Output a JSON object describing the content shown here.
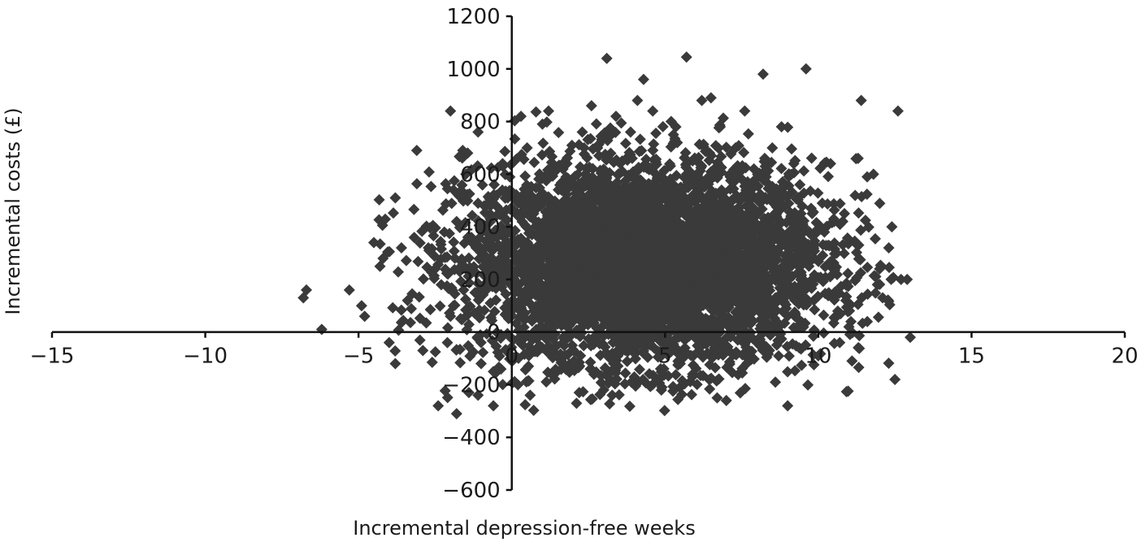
{
  "chart_data": {
    "type": "scatter",
    "title": "",
    "xlabel": "Incremental depression-free weeks",
    "ylabel": "Incremental costs (£)",
    "xlim": [
      -15,
      20
    ],
    "ylim": [
      -600,
      1200
    ],
    "xticks": [
      -15,
      -10,
      -5,
      0,
      5,
      10,
      15,
      20
    ],
    "yticks": [
      -600,
      -400,
      -200,
      0,
      200,
      400,
      600,
      800,
      1000,
      1200
    ],
    "xtick_labels": [
      "−15",
      "−10",
      "−5",
      "0",
      "5",
      "10",
      "15",
      "20"
    ],
    "ytick_labels": [
      "−600",
      "−400",
      "−200",
      "0",
      "200",
      "400",
      "600",
      "800",
      "1000",
      "1200"
    ],
    "grid": false,
    "legend": "none",
    "marker": "diamond",
    "marker_color": "#3a3a3a",
    "n_points_approx": 5000,
    "center": {
      "x": 4.4,
      "y": 260
    },
    "spread_sd": {
      "x": 2.9,
      "y": 190
    },
    "series": [
      {
        "values": [
          [
            -6.8,
            130
          ],
          [
            -6.7,
            160
          ],
          [
            -6.2,
            10
          ],
          [
            -5.3,
            160
          ],
          [
            -4.9,
            100
          ],
          [
            -4.8,
            60
          ],
          [
            -4.5,
            340
          ],
          [
            -4.3,
            250
          ],
          [
            -4.2,
            280
          ],
          [
            -4.0,
            -40
          ],
          [
            -3.8,
            -120
          ],
          [
            -3.8,
            510
          ],
          [
            -3.6,
            320
          ],
          [
            -3.4,
            120
          ],
          [
            -3.1,
            690
          ],
          [
            -2.9,
            -70
          ],
          [
            -2.7,
            310
          ],
          [
            -2.5,
            240
          ],
          [
            -2.4,
            -280
          ],
          [
            -2.3,
            180
          ],
          [
            -2.2,
            380
          ],
          [
            -2.0,
            60
          ],
          [
            -1.8,
            420
          ],
          [
            -1.7,
            230
          ],
          [
            -1.5,
            600
          ],
          [
            -1.3,
            350
          ],
          [
            -1.2,
            150
          ],
          [
            -1.0,
            -120
          ],
          [
            -0.9,
            480
          ],
          [
            -0.8,
            280
          ],
          [
            -0.6,
            -150
          ],
          [
            -0.5,
            520
          ],
          [
            -0.4,
            380
          ],
          [
            -0.2,
            210
          ],
          [
            -0.1,
            -80
          ],
          [
            -1.6,
            690
          ],
          [
            -1.9,
            540
          ],
          [
            -2.1,
            -40
          ],
          [
            -1.1,
            760
          ],
          [
            -0.7,
            110
          ],
          [
            -2.0,
            840
          ],
          [
            -1.4,
            -230
          ],
          [
            -0.3,
            640
          ],
          [
            -1.8,
            -310
          ],
          [
            -1.1,
            -240
          ],
          [
            -0.6,
            -280
          ],
          [
            0.3,
            820
          ],
          [
            0.5,
            700
          ],
          [
            0.2,
            -200
          ],
          [
            0.6,
            -240
          ],
          [
            0.8,
            500
          ],
          [
            1.0,
            790
          ],
          [
            1.2,
            840
          ],
          [
            1.5,
            300
          ],
          [
            1.8,
            640
          ],
          [
            2.0,
            -120
          ],
          [
            2.3,
            760
          ],
          [
            2.6,
            860
          ],
          [
            2.8,
            700
          ],
          [
            3.0,
            -220
          ],
          [
            3.1,
            1040
          ],
          [
            3.4,
            820
          ],
          [
            3.6,
            650
          ],
          [
            3.9,
            -190
          ],
          [
            4.1,
            880
          ],
          [
            4.3,
            960
          ],
          [
            4.6,
            840
          ],
          [
            4.9,
            -210
          ],
          [
            5.2,
            800
          ],
          [
            5.4,
            720
          ],
          [
            5.7,
            1045
          ],
          [
            5.9,
            -160
          ],
          [
            6.2,
            880
          ],
          [
            6.5,
            890
          ],
          [
            6.8,
            780
          ],
          [
            7.0,
            -260
          ],
          [
            7.3,
            700
          ],
          [
            7.6,
            840
          ],
          [
            7.9,
            620
          ],
          [
            8.2,
            980
          ],
          [
            8.5,
            700
          ],
          [
            8.8,
            780
          ],
          [
            9.0,
            -280
          ],
          [
            9.2,
            640
          ],
          [
            9.4,
            560
          ],
          [
            9.6,
            1000
          ],
          [
            9.8,
            450
          ],
          [
            10.0,
            -90
          ],
          [
            10.2,
            380
          ],
          [
            10.4,
            640
          ],
          [
            10.6,
            300
          ],
          [
            10.9,
            120
          ],
          [
            11.1,
            -110
          ],
          [
            11.3,
            660
          ],
          [
            11.4,
            880
          ],
          [
            11.6,
            40
          ],
          [
            11.8,
            600
          ],
          [
            12.0,
            240
          ],
          [
            12.3,
            320
          ],
          [
            12.4,
            400
          ],
          [
            12.5,
            -180
          ],
          [
            12.6,
            840
          ],
          [
            12.7,
            200
          ],
          [
            12.9,
            200
          ],
          [
            13.0,
            -20
          ],
          [
            12.1,
            130
          ],
          [
            11.0,
            20
          ],
          [
            10.7,
            -40
          ],
          [
            8.6,
            -190
          ],
          [
            1.3,
            -160
          ],
          [
            2.2,
            -230
          ],
          [
            6.7,
            -250
          ]
        ]
      }
    ]
  }
}
